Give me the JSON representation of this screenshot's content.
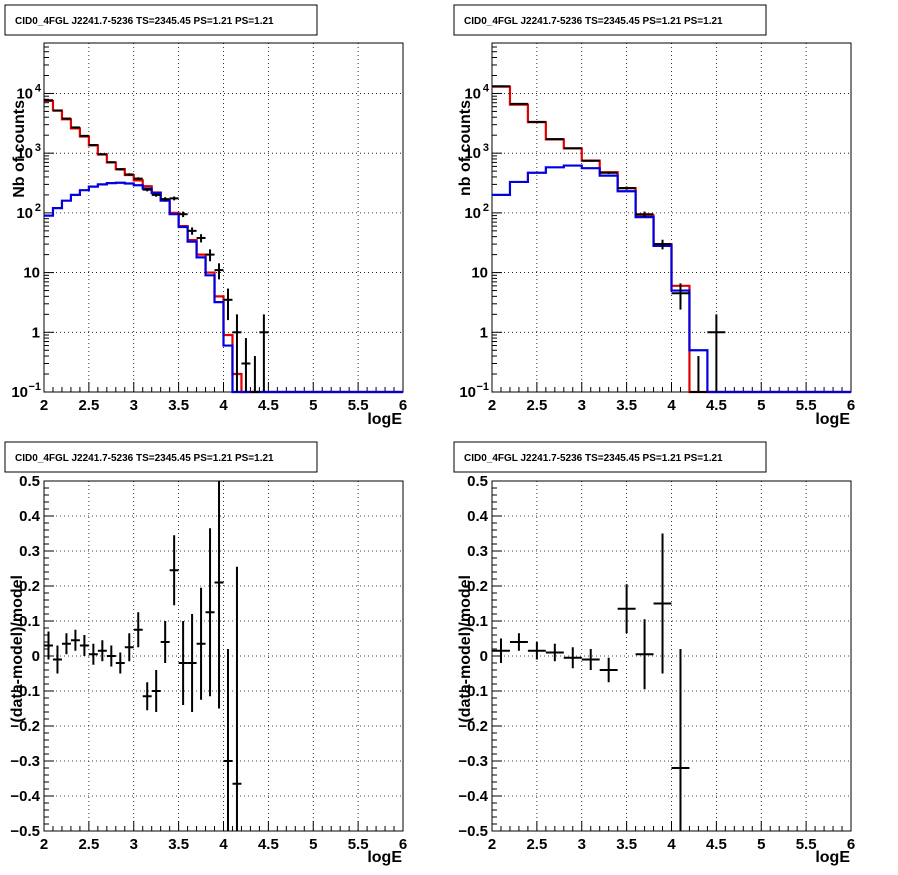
{
  "chart_data": [
    {
      "type": "line",
      "title": "CID0_4FGL J2241.7-5236 TS=2345.45 PS=1.21 PS=1.21",
      "xlabel": "logE",
      "ylabel": "Nb of counts",
      "xlim": [
        2,
        6
      ],
      "ylim": [
        0.1,
        70000
      ],
      "yscale": "log",
      "grid": true,
      "x_ticks": [
        "2",
        "2.5",
        "3",
        "3.5",
        "4",
        "4.5",
        "5",
        "5.5",
        "6"
      ],
      "y_ticks": [
        {
          "value": 0.1,
          "label": "10",
          "sup": "−1"
        },
        {
          "value": 1,
          "label": "1",
          "sup": ""
        },
        {
          "value": 10,
          "label": "10",
          "sup": ""
        },
        {
          "value": 100,
          "label": "10",
          "sup": "2"
        },
        {
          "value": 1000,
          "label": "10",
          "sup": "3"
        },
        {
          "value": 10000,
          "label": "10",
          "sup": "4"
        }
      ],
      "bin_width": 0.1,
      "bin_edges_start": 2.0,
      "series": [
        {
          "style": "step",
          "color": "#e00000",
          "values": [
            7500,
            5200,
            3700,
            2600,
            1900,
            1350,
            950,
            700,
            540,
            430,
            350,
            280,
            220,
            165,
            100,
            60,
            35,
            20,
            10,
            4,
            0.9,
            0.2,
            0.05,
            0.05,
            0.1,
            0.1,
            0.1,
            0.1,
            0.1,
            0.1,
            0.1,
            0.1,
            0.1,
            0.1,
            0.1,
            0.1,
            0.1,
            0.1,
            0.1,
            0.1
          ]
        },
        {
          "style": "step",
          "color": "#0000e0",
          "values": [
            90,
            120,
            160,
            200,
            240,
            275,
            300,
            315,
            320,
            310,
            290,
            255,
            215,
            160,
            95,
            58,
            33,
            18,
            9,
            3.2,
            0.6,
            0.1,
            0.05,
            0.05,
            0.1,
            0.1,
            0.1,
            0.1,
            0.1,
            0.1,
            0.1,
            0.1,
            0.1,
            0.1,
            0.1,
            0.1,
            0.1,
            0.1,
            0.1,
            0.1
          ]
        },
        {
          "style": "errorbar",
          "color": "#000000",
          "x": [
            2.05,
            2.15,
            2.25,
            2.35,
            2.45,
            2.55,
            2.65,
            2.75,
            2.85,
            2.95,
            3.05,
            3.15,
            3.25,
            3.35,
            3.45,
            3.55,
            3.65,
            3.75,
            3.85,
            3.95,
            4.05,
            4.15,
            4.25,
            4.35,
            4.45
          ],
          "y": [
            7700,
            5150,
            3800,
            2700,
            1950,
            1370,
            960,
            705,
            535,
            440,
            375,
            245,
            200,
            170,
            175,
            95,
            50,
            38,
            20,
            11,
            3.5,
            1,
            0.3,
            0.1,
            1
          ],
          "yerr": [
            90,
            72,
            62,
            52,
            44,
            37,
            31,
            27,
            23,
            21,
            19,
            16,
            14,
            13,
            13,
            10,
            7,
            6,
            4.5,
            3.3,
            1.9,
            1,
            0.5,
            0.3,
            1
          ]
        }
      ]
    },
    {
      "type": "line",
      "title": "CID0_4FGL J2241.7-5236 TS=2345.45 PS=1.21 PS=1.21",
      "xlabel": "logE",
      "ylabel": "nb of counts",
      "xlim": [
        2,
        6
      ],
      "ylim": [
        0.1,
        70000
      ],
      "yscale": "log",
      "grid": true,
      "x_ticks": [
        "2",
        "2.5",
        "3",
        "3.5",
        "4",
        "4.5",
        "5",
        "5.5",
        "6"
      ],
      "y_ticks": [
        {
          "value": 0.1,
          "label": "10",
          "sup": "−1"
        },
        {
          "value": 1,
          "label": "1",
          "sup": ""
        },
        {
          "value": 10,
          "label": "10",
          "sup": ""
        },
        {
          "value": 100,
          "label": "10",
          "sup": "2"
        },
        {
          "value": 1000,
          "label": "10",
          "sup": "3"
        },
        {
          "value": 10000,
          "label": "10",
          "sup": "4"
        }
      ],
      "bin_width": 0.2,
      "bin_edges_start": 2.0,
      "series": [
        {
          "style": "step",
          "color": "#e00000",
          "values": [
            13000,
            6500,
            3300,
            1700,
            1200,
            750,
            480,
            260,
            90,
            30,
            6,
            0.1,
            0.1,
            0.1,
            0.1,
            0.1,
            0.1,
            0.1,
            0.1,
            0.1
          ]
        },
        {
          "style": "step",
          "color": "#0000e0",
          "values": [
            200,
            330,
            470,
            580,
            620,
            560,
            420,
            230,
            85,
            28,
            5,
            0.5,
            0.1,
            0.1,
            0.1,
            0.1,
            0.1,
            0.1,
            0.1,
            0.1
          ]
        },
        {
          "style": "errorbar",
          "color": "#000000",
          "x": [
            2.1,
            2.3,
            2.5,
            2.7,
            2.9,
            3.1,
            3.3,
            3.5,
            3.7,
            3.9,
            4.1,
            4.3,
            4.5
          ],
          "y": [
            13200,
            6700,
            3350,
            1720,
            1210,
            745,
            470,
            260,
            95,
            30,
            4.5,
            0.1,
            1
          ],
          "yerr": [
            115,
            82,
            58,
            41,
            35,
            27,
            22,
            16,
            10,
            5.5,
            2.1,
            0.3,
            1
          ]
        }
      ]
    },
    {
      "type": "scatter",
      "title": "CID0_4FGL J2241.7-5236 TS=2345.45 PS=1.21 PS=1.21",
      "xlabel": "logE",
      "ylabel": "(data-model)/model",
      "xlim": [
        2,
        6
      ],
      "ylim": [
        -0.5,
        0.5
      ],
      "yscale": "linear",
      "grid": true,
      "x_ticks": [
        "2",
        "2.5",
        "3",
        "3.5",
        "4",
        "4.5",
        "5",
        "5.5",
        "6"
      ],
      "y_ticks": [
        "−0.5",
        "−0.4",
        "−0.3",
        "−0.2",
        "−0.1",
        "0",
        "0.1",
        "0.2",
        "0.3",
        "0.4",
        "0.5"
      ],
      "series": [
        {
          "style": "errorbar",
          "color": "#000000",
          "xerr": 0.05,
          "x": [
            2.05,
            2.15,
            2.25,
            2.35,
            2.45,
            2.55,
            2.65,
            2.75,
            2.85,
            2.95,
            3.05,
            3.15,
            3.25,
            3.35,
            3.45,
            3.55,
            3.65,
            3.75,
            3.85,
            3.95,
            4.05,
            4.15
          ],
          "y": [
            0.03,
            -0.01,
            0.035,
            0.045,
            0.03,
            0.005,
            0.015,
            0.0,
            -0.02,
            0.025,
            0.075,
            -0.115,
            -0.1,
            0.04,
            0.245,
            -0.02,
            -0.02,
            0.035,
            0.125,
            0.21,
            -0.3,
            -0.365
          ],
          "yerr": [
            0.04,
            0.04,
            0.03,
            0.03,
            0.03,
            0.03,
            0.03,
            0.03,
            0.03,
            0.04,
            0.05,
            0.04,
            0.06,
            0.06,
            0.1,
            0.12,
            0.14,
            0.16,
            0.24,
            0.36,
            0.32,
            0.62
          ]
        }
      ]
    },
    {
      "type": "scatter",
      "title": "CID0_4FGL J2241.7-5236 TS=2345.45 PS=1.21 PS=1.21",
      "xlabel": "logE",
      "ylabel": "(data-model)/model",
      "xlim": [
        2,
        6
      ],
      "ylim": [
        -0.5,
        0.5
      ],
      "yscale": "linear",
      "grid": true,
      "x_ticks": [
        "2",
        "2.5",
        "3",
        "3.5",
        "4",
        "4.5",
        "5",
        "5.5",
        "6"
      ],
      "y_ticks": [
        "−0.5",
        "−0.4",
        "−0.3",
        "−0.2",
        "−0.1",
        "0",
        "0.1",
        "0.2",
        "0.3",
        "0.4",
        "0.5"
      ],
      "series": [
        {
          "style": "errorbar",
          "color": "#000000",
          "xerr": 0.1,
          "x": [
            2.1,
            2.3,
            2.5,
            2.7,
            2.9,
            3.1,
            3.3,
            3.5,
            3.7,
            3.9,
            4.1
          ],
          "y": [
            0.015,
            0.04,
            0.015,
            0.01,
            -0.005,
            -0.01,
            -0.04,
            0.135,
            0.005,
            0.15,
            -0.32
          ],
          "yerr": [
            0.035,
            0.025,
            0.025,
            0.025,
            0.03,
            0.03,
            0.035,
            0.07,
            0.1,
            0.2,
            0.34
          ]
        }
      ]
    }
  ]
}
